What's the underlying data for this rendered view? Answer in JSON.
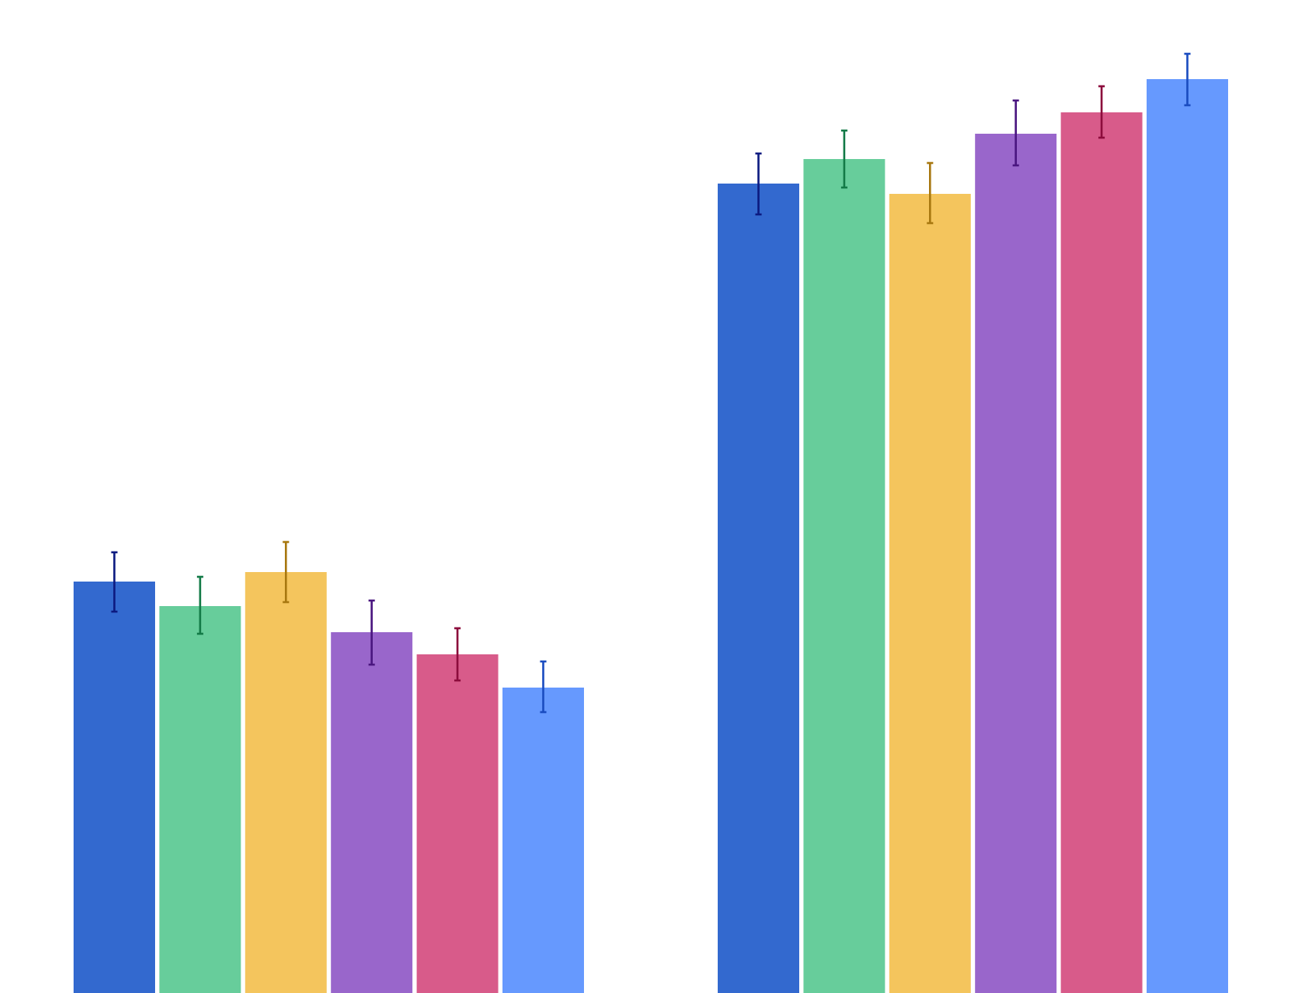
{
  "chart_data": {
    "type": "bar",
    "title": "",
    "xlabel": "",
    "ylabel": "",
    "grid": false,
    "legend": "none",
    "ylim": [
      0,
      1255
    ],
    "groups": [
      {
        "bars": [
          {
            "value": 520,
            "err_low": 38,
            "err_high": 37,
            "color": "#3369cf",
            "err_color": "#0c1a80"
          },
          {
            "value": 489,
            "err_low": 35,
            "err_high": 37,
            "color": "#67cd9b",
            "err_color": "#137a47"
          },
          {
            "value": 532,
            "err_low": 38,
            "err_high": 38,
            "color": "#f4c55d",
            "err_color": "#a87810"
          },
          {
            "value": 456,
            "err_low": 41,
            "err_high": 40,
            "color": "#9966cb",
            "err_color": "#4a1680"
          },
          {
            "value": 428,
            "err_low": 33,
            "err_high": 33,
            "color": "#d85b8a",
            "err_color": "#8c0c3c"
          },
          {
            "value": 386,
            "err_low": 31,
            "err_high": 33,
            "color": "#6699fe",
            "err_color": "#1a4cc0"
          }
        ]
      },
      {
        "bars": [
          {
            "value": 1023,
            "err_low": 39,
            "err_high": 38,
            "color": "#3369cf",
            "err_color": "#0c1a80"
          },
          {
            "value": 1054,
            "err_low": 36,
            "err_high": 36,
            "color": "#67cd9b",
            "err_color": "#137a47"
          },
          {
            "value": 1010,
            "err_low": 37,
            "err_high": 39,
            "color": "#f4c55d",
            "err_color": "#a87810"
          },
          {
            "value": 1086,
            "err_low": 40,
            "err_high": 42,
            "color": "#9966cb",
            "err_color": "#4a1680"
          },
          {
            "value": 1113,
            "err_low": 32,
            "err_high": 33,
            "color": "#d85b8a",
            "err_color": "#8c0c3c"
          },
          {
            "value": 1155,
            "err_low": 33,
            "err_high": 32,
            "color": "#6699fe",
            "err_color": "#1a4cc0"
          }
        ]
      }
    ]
  }
}
